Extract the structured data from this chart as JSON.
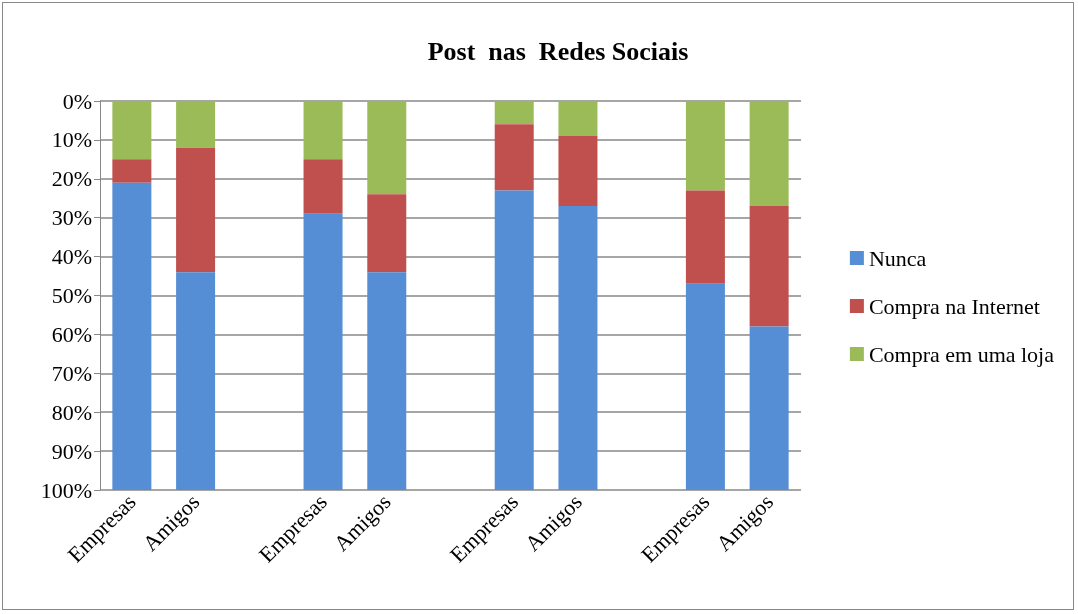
{
  "chart_data": {
    "type": "bar",
    "title": "Post  nas  Redes Sociais",
    "stacked": true,
    "categories": [
      "Empresas",
      "Amigos",
      null,
      "Empresas",
      "Amigos",
      null,
      "Empresas",
      "Amigos",
      null,
      "Empresas",
      "Amigos"
    ],
    "series": [
      {
        "name": "Compra em uma loja",
        "color": "#9bbb59",
        "values": [
          15,
          12,
          null,
          15,
          24,
          null,
          6,
          9,
          null,
          23,
          27
        ]
      },
      {
        "name": "Compra na Internet",
        "color": "#c0504d",
        "values": [
          6,
          32,
          null,
          14,
          20,
          null,
          17,
          18,
          null,
          24,
          31
        ]
      },
      {
        "name": "Nunca",
        "color": "#558ed5",
        "values": [
          79,
          56,
          null,
          71,
          56,
          null,
          77,
          73,
          null,
          53,
          42
        ]
      }
    ],
    "ylim": [
      100,
      0
    ],
    "yticks": [
      {
        "value": 0,
        "label": "0%"
      },
      {
        "value": 10,
        "label": "10%"
      },
      {
        "value": 20,
        "label": "20%"
      },
      {
        "value": 30,
        "label": "30%"
      },
      {
        "value": 40,
        "label": "40%"
      },
      {
        "value": 50,
        "label": "50%"
      },
      {
        "value": 60,
        "label": "60%"
      },
      {
        "value": 70,
        "label": "70%"
      },
      {
        "value": 80,
        "label": "80%"
      },
      {
        "value": 90,
        "label": "90%"
      },
      {
        "value": 100,
        "label": "100%"
      }
    ],
    "grid": "y",
    "legend": "right"
  }
}
